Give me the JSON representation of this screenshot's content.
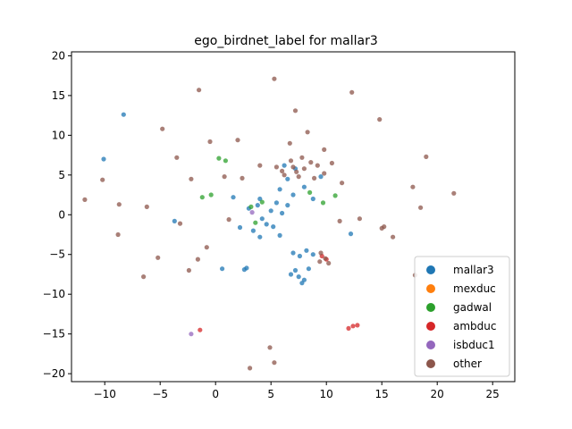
{
  "chart_data": {
    "type": "scatter",
    "title": "ego_birdnet_label for mallar3",
    "xlabel": "",
    "ylabel": "",
    "xlim": [
      -13.0,
      27.0
    ],
    "ylim": [
      -21.0,
      20.5
    ],
    "xticks": [
      -10,
      -5,
      0,
      5,
      10,
      15,
      20,
      25
    ],
    "yticks": [
      -20,
      -15,
      -10,
      -5,
      0,
      5,
      10,
      15,
      20
    ],
    "grid": false,
    "legend_position": "lower-right",
    "series": [
      {
        "name": "mallar3",
        "color": "#1f77b4",
        "points": [
          [
            4.2,
            -0.5
          ],
          [
            5.0,
            0.5
          ],
          [
            5.5,
            1.5
          ],
          [
            3.8,
            1.2
          ],
          [
            4.6,
            -1.2
          ],
          [
            6.0,
            0.2
          ],
          [
            3.0,
            0.8
          ],
          [
            5.2,
            -1.5
          ],
          [
            4.0,
            2.0
          ],
          [
            6.5,
            1.2
          ],
          [
            7.5,
            -7.8
          ],
          [
            8.0,
            -8.2
          ],
          [
            7.2,
            -7.0
          ],
          [
            8.4,
            -6.8
          ],
          [
            7.8,
            -8.6
          ],
          [
            6.8,
            -7.5
          ],
          [
            8.2,
            -4.5
          ],
          [
            7.6,
            -5.2
          ],
          [
            8.8,
            -5.0
          ],
          [
            7.0,
            -4.8
          ],
          [
            2.8,
            -6.7
          ],
          [
            2.6,
            -6.9
          ],
          [
            -3.7,
            -0.8
          ],
          [
            12.2,
            -2.4
          ],
          [
            0.6,
            -6.8
          ],
          [
            6.5,
            4.5
          ],
          [
            7.2,
            5.8
          ],
          [
            8.0,
            3.5
          ],
          [
            5.8,
            3.2
          ],
          [
            9.5,
            4.8
          ],
          [
            -10.1,
            7.0
          ],
          [
            -8.3,
            12.6
          ],
          [
            4.0,
            -2.8
          ],
          [
            3.4,
            -2.0
          ],
          [
            5.8,
            -2.6
          ],
          [
            1.6,
            2.2
          ],
          [
            2.2,
            -1.6
          ],
          [
            7.0,
            2.5
          ],
          [
            8.8,
            2.0
          ],
          [
            6.2,
            6.2
          ]
        ]
      },
      {
        "name": "mexduc",
        "color": "#ff7f0e",
        "points": []
      },
      {
        "name": "gadwal",
        "color": "#2ca02c",
        "points": [
          [
            -0.4,
            2.5
          ],
          [
            -1.2,
            2.2
          ],
          [
            0.3,
            7.1
          ],
          [
            0.9,
            6.8
          ],
          [
            4.2,
            1.6
          ],
          [
            8.5,
            2.8
          ],
          [
            10.8,
            2.4
          ],
          [
            3.2,
            1.0
          ],
          [
            9.7,
            1.5
          ],
          [
            3.6,
            -1.0
          ]
        ]
      },
      {
        "name": "ambduc",
        "color": "#d62728",
        "points": [
          [
            12.4,
            -14.0
          ],
          [
            12.8,
            -13.9
          ],
          [
            12.0,
            -14.3
          ],
          [
            9.6,
            -5.2
          ],
          [
            10.0,
            -5.6
          ],
          [
            -1.4,
            -14.5
          ]
        ]
      },
      {
        "name": "isbduc1",
        "color": "#9467bd",
        "points": [
          [
            -2.2,
            -15.0
          ],
          [
            3.3,
            0.3
          ]
        ]
      },
      {
        "name": "other",
        "color": "#8c564b",
        "points": [
          [
            6.0,
            5.5
          ],
          [
            7.0,
            6.0
          ],
          [
            8.0,
            5.8
          ],
          [
            9.2,
            6.2
          ],
          [
            7.5,
            4.8
          ],
          [
            6.8,
            6.8
          ],
          [
            8.6,
            6.6
          ],
          [
            9.8,
            5.2
          ],
          [
            5.5,
            6.0
          ],
          [
            7.8,
            7.2
          ],
          [
            6.2,
            5.0
          ],
          [
            8.9,
            4.6
          ],
          [
            7.3,
            5.4
          ],
          [
            9.5,
            -4.8
          ],
          [
            9.9,
            -5.5
          ],
          [
            10.2,
            -6.1
          ],
          [
            9.4,
            -5.9
          ],
          [
            12.3,
            15.4
          ],
          [
            -1.5,
            15.7
          ],
          [
            5.3,
            17.1
          ],
          [
            -11.8,
            1.9
          ],
          [
            -6.5,
            -7.8
          ],
          [
            4.9,
            -16.7
          ],
          [
            5.3,
            -18.6
          ],
          [
            3.1,
            -19.3
          ],
          [
            19.0,
            7.3
          ],
          [
            15.2,
            -1.5
          ],
          [
            15.0,
            -1.7
          ],
          [
            13.0,
            -0.5
          ],
          [
            17.8,
            3.5
          ],
          [
            18.0,
            -7.6
          ],
          [
            18.5,
            0.9
          ],
          [
            -6.2,
            1.0
          ],
          [
            -8.8,
            -2.5
          ],
          [
            -3.2,
            -1.1
          ],
          [
            -0.8,
            -4.1
          ],
          [
            -1.6,
            -5.6
          ],
          [
            -2.4,
            -7.0
          ],
          [
            -5.2,
            -5.4
          ],
          [
            2.4,
            4.6
          ],
          [
            0.8,
            4.8
          ],
          [
            1.2,
            -0.6
          ],
          [
            10.5,
            6.5
          ],
          [
            11.4,
            4.0
          ],
          [
            -0.5,
            9.2
          ],
          [
            4.0,
            6.2
          ],
          [
            8.3,
            10.4
          ],
          [
            7.2,
            13.1
          ],
          [
            6.7,
            9.0
          ],
          [
            11.2,
            -0.8
          ],
          [
            -3.5,
            7.2
          ],
          [
            -10.2,
            4.4
          ],
          [
            -8.7,
            1.3
          ],
          [
            16.0,
            -2.8
          ],
          [
            21.5,
            2.7
          ],
          [
            -4.8,
            10.8
          ],
          [
            2.0,
            9.4
          ],
          [
            9.8,
            8.2
          ],
          [
            14.8,
            12.0
          ],
          [
            -2.2,
            4.5
          ]
        ]
      }
    ]
  }
}
